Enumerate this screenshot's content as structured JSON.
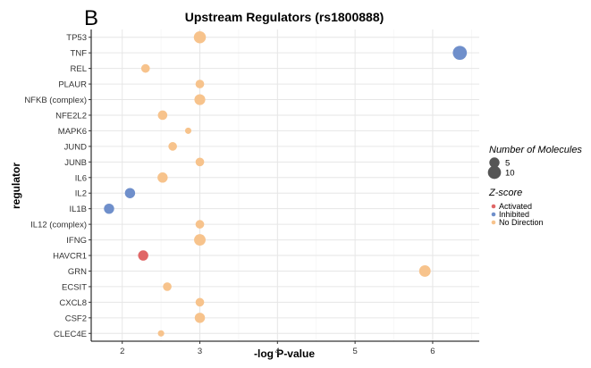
{
  "panel_label": "B",
  "chart_data": {
    "type": "scatter",
    "title": "Upstream Regulators (rs1800888)",
    "xlabel": "-log P-value",
    "ylabel": "regulator",
    "xlim": [
      1.6,
      6.6
    ],
    "x_ticks": [
      2,
      3,
      4,
      5,
      6
    ],
    "grid": true,
    "legend_position": "right",
    "size_legend": {
      "title": "Number of Molecules",
      "values": [
        5,
        10
      ]
    },
    "color_legend": {
      "title": "Z-score",
      "items": [
        {
          "label": "Activated",
          "color": "#E06666"
        },
        {
          "label": "Inhibited",
          "color": "#6F8FCB"
        },
        {
          "label": "No Direction",
          "color": "#F7C38C"
        }
      ]
    },
    "categories": [
      "TP53",
      "TNF",
      "REL",
      "PLAUR",
      "NFKB (complex)",
      "NFE2L2",
      "MAPK6",
      "JUND",
      "JUNB",
      "IL6",
      "IL2",
      "IL1B",
      "IL12 (complex)",
      "IFNG",
      "HAVCR1",
      "GRN",
      "ECSIT",
      "CXCL8",
      "CSF2",
      "CLEC4E"
    ],
    "points": [
      {
        "regulator": "TP53",
        "x": 3.0,
        "molecules": 8,
        "zscore": "No Direction"
      },
      {
        "regulator": "TNF",
        "x": 6.35,
        "molecules": 12,
        "zscore": "Inhibited"
      },
      {
        "regulator": "REL",
        "x": 2.3,
        "molecules": 3,
        "zscore": "No Direction"
      },
      {
        "regulator": "PLAUR",
        "x": 3.0,
        "molecules": 3,
        "zscore": "No Direction"
      },
      {
        "regulator": "NFKB (complex)",
        "x": 3.0,
        "molecules": 6,
        "zscore": "No Direction"
      },
      {
        "regulator": "NFE2L2",
        "x": 2.52,
        "molecules": 4,
        "zscore": "No Direction"
      },
      {
        "regulator": "MAPK6",
        "x": 2.85,
        "molecules": 1,
        "zscore": "No Direction"
      },
      {
        "regulator": "JUND",
        "x": 2.65,
        "molecules": 3,
        "zscore": "No Direction"
      },
      {
        "regulator": "JUNB",
        "x": 3.0,
        "molecules": 3,
        "zscore": "No Direction"
      },
      {
        "regulator": "IL6",
        "x": 2.52,
        "molecules": 5,
        "zscore": "No Direction"
      },
      {
        "regulator": "IL2",
        "x": 2.1,
        "molecules": 5,
        "zscore": "Inhibited"
      },
      {
        "regulator": "IL1B",
        "x": 1.83,
        "molecules": 5,
        "zscore": "Inhibited"
      },
      {
        "regulator": "IL12 (complex)",
        "x": 3.0,
        "molecules": 3,
        "zscore": "No Direction"
      },
      {
        "regulator": "IFNG",
        "x": 3.0,
        "molecules": 7,
        "zscore": "No Direction"
      },
      {
        "regulator": "HAVCR1",
        "x": 2.27,
        "molecules": 5,
        "zscore": "Activated"
      },
      {
        "regulator": "GRN",
        "x": 5.9,
        "molecules": 7,
        "zscore": "No Direction"
      },
      {
        "regulator": "ECSIT",
        "x": 2.58,
        "molecules": 3,
        "zscore": "No Direction"
      },
      {
        "regulator": "CXCL8",
        "x": 3.0,
        "molecules": 3,
        "zscore": "No Direction"
      },
      {
        "regulator": "CSF2",
        "x": 3.0,
        "molecules": 5,
        "zscore": "No Direction"
      },
      {
        "regulator": "CLEC4E",
        "x": 2.5,
        "molecules": 1,
        "zscore": "No Direction"
      }
    ]
  }
}
